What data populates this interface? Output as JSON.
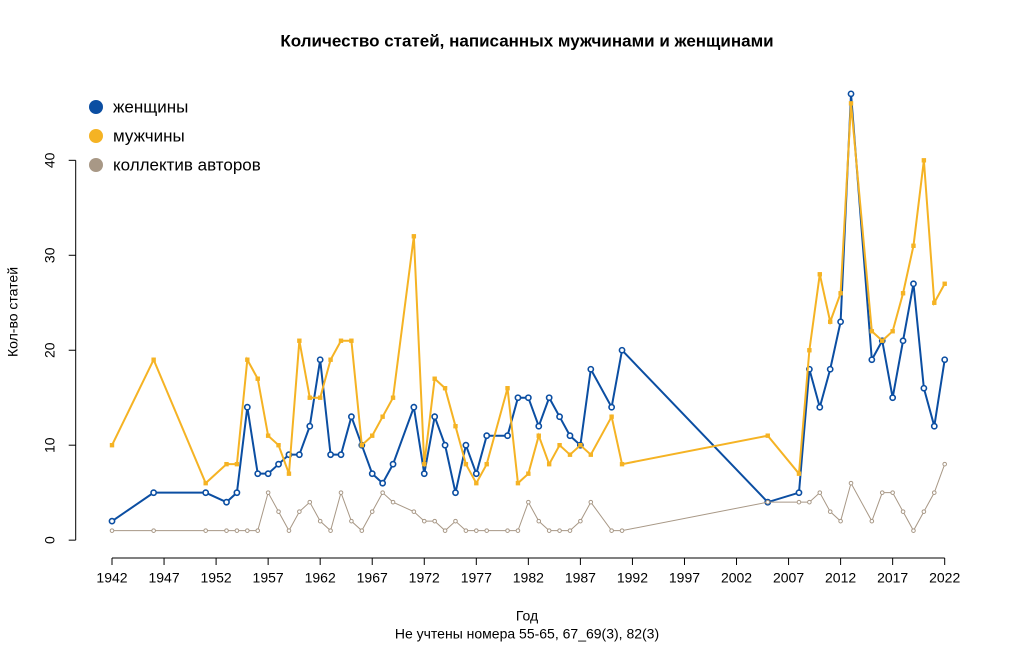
{
  "chart_data": {
    "type": "line",
    "title": "Количество статей, написанных мужчинами и женщинами",
    "x_label": "Год",
    "subtitle": "Не учтены номера 55-65, 67_69(3), 82(3)",
    "y_label": "Кол-во статей",
    "x": [
      1942,
      1946,
      1951,
      1953,
      1954,
      1955,
      1956,
      1957,
      1958,
      1959,
      1960,
      1961,
      1962,
      1963,
      1964,
      1965,
      1966,
      1967,
      1968,
      1969,
      1971,
      1972,
      1973,
      1974,
      1975,
      1976,
      1977,
      1978,
      1980,
      1981,
      1982,
      1983,
      1984,
      1985,
      1986,
      1987,
      1988,
      1990,
      1991,
      2005,
      2008,
      2009,
      2010,
      2011,
      2012,
      2013,
      2015,
      2016,
      2017,
      2018,
      2019,
      2020,
      2021,
      2022
    ],
    "series": [
      {
        "name": "женщины",
        "color": "#0b4ea2",
        "marker": "circle-open",
        "values": [
          2,
          5,
          5,
          4,
          5,
          14,
          7,
          7,
          8,
          9,
          9,
          12,
          19,
          9,
          9,
          13,
          10,
          7,
          6,
          8,
          14,
          7,
          13,
          10,
          5,
          10,
          7,
          11,
          11,
          15,
          15,
          12,
          15,
          13,
          11,
          10,
          18,
          14,
          20,
          4,
          5,
          18,
          14,
          18,
          23,
          47,
          19,
          21,
          15,
          21,
          27,
          16,
          12,
          19
        ]
      },
      {
        "name": "мужчины",
        "color": "#f5b324",
        "marker": "square",
        "values": [
          10,
          19,
          6,
          8,
          8,
          19,
          17,
          11,
          10,
          7,
          21,
          15,
          15,
          19,
          21,
          21,
          10,
          11,
          13,
          15,
          32,
          8,
          17,
          16,
          12,
          8,
          6,
          8,
          16,
          6,
          7,
          11,
          8,
          10,
          9,
          10,
          9,
          13,
          8,
          11,
          7,
          20,
          28,
          23,
          26,
          46,
          22,
          21,
          22,
          26,
          31,
          40,
          25,
          27
        ]
      },
      {
        "name": "коллектив авторов",
        "color": "#a89886",
        "marker": "circle-small",
        "values": [
          1,
          1,
          1,
          1,
          1,
          1,
          1,
          5,
          3,
          1,
          3,
          4,
          2,
          1,
          5,
          2,
          1,
          3,
          5,
          4,
          3,
          2,
          2,
          1,
          2,
          1,
          1,
          1,
          1,
          1,
          4,
          2,
          1,
          1,
          1,
          2,
          4,
          1,
          1,
          4,
          4,
          4,
          5,
          3,
          2,
          6,
          2,
          5,
          5,
          3,
          1,
          3,
          5,
          8
        ]
      }
    ],
    "xlim": [
      1938.8,
      2025.2
    ],
    "ylim": [
      -1.88,
      48.88
    ],
    "xticks": [
      1942,
      1947,
      1952,
      1957,
      1962,
      1967,
      1972,
      1977,
      1982,
      1987,
      1992,
      1997,
      2002,
      2007,
      2012,
      2017,
      2022
    ],
    "yticks": [
      0,
      10,
      20,
      30,
      40
    ],
    "legend": "top-left"
  }
}
